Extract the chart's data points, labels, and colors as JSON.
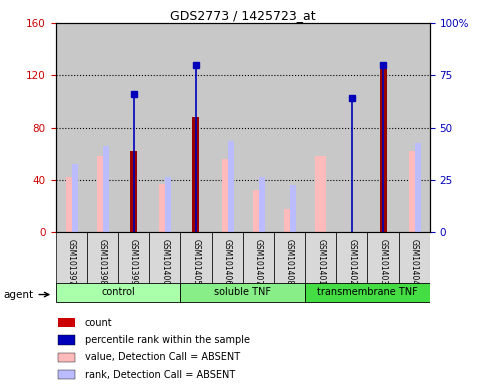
{
  "title": "GDS2773 / 1425723_at",
  "samples": [
    "GSM101397",
    "GSM101398",
    "GSM101399",
    "GSM101400",
    "GSM101405",
    "GSM101406",
    "GSM101407",
    "GSM101408",
    "GSM101401",
    "GSM101402",
    "GSM101403",
    "GSM101404"
  ],
  "groups": [
    {
      "name": "control",
      "color": "#aaffaa",
      "samples": [
        0,
        1,
        2,
        3
      ]
    },
    {
      "name": "soluble TNF",
      "color": "#88ee88",
      "samples": [
        4,
        5,
        6,
        7
      ]
    },
    {
      "name": "transmembrane TNF",
      "color": "#44dd44",
      "samples": [
        8,
        9,
        10,
        11
      ]
    }
  ],
  "count_values": [
    null,
    null,
    62,
    null,
    88,
    null,
    null,
    null,
    null,
    null,
    128,
    null
  ],
  "percentile_values": [
    null,
    null,
    66,
    null,
    80,
    null,
    null,
    null,
    null,
    64,
    80,
    null
  ],
  "value_absent": [
    42,
    58,
    null,
    37,
    null,
    56,
    32,
    18,
    58,
    null,
    null,
    62
  ],
  "rank_absent": [
    52,
    66,
    null,
    42,
    null,
    70,
    42,
    36,
    null,
    null,
    null,
    68
  ],
  "ylim_left": [
    0,
    160
  ],
  "ylim_right": [
    0,
    100
  ],
  "yticks_left": [
    0,
    40,
    80,
    120,
    160
  ],
  "yticks_right": [
    0,
    25,
    50,
    75,
    100
  ],
  "yticklabels_right": [
    "0",
    "25",
    "50",
    "75",
    "100%"
  ],
  "left_axis_color": "#cc0000",
  "right_axis_color": "#0000bb",
  "count_color": "#990000",
  "percentile_color": "#0000bb",
  "value_absent_color": "#ffbbbb",
  "rank_absent_color": "#bbbbff",
  "plot_bg_color": "#c8c8c8",
  "xtick_bg_color": "#d8d8d8",
  "legend_items": [
    {
      "color": "#cc0000",
      "label": "count"
    },
    {
      "color": "#0000bb",
      "label": "percentile rank within the sample"
    },
    {
      "color": "#ffbbbb",
      "label": "value, Detection Call = ABSENT"
    },
    {
      "color": "#bbbbff",
      "label": "rank, Detection Call = ABSENT"
    }
  ]
}
